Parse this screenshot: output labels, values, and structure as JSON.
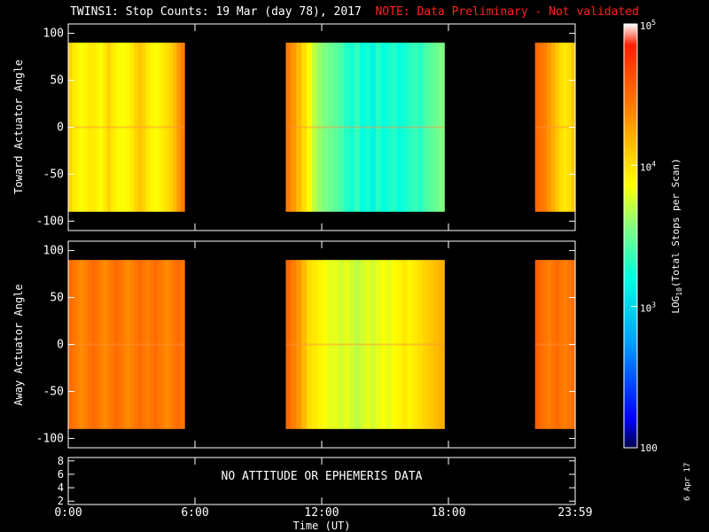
{
  "title": "TWINS1: Stop Counts: 19 Mar (day  78), 2017",
  "note": "NOTE: Data Preliminary - Not validated",
  "date_stamp": "6 Apr 17",
  "no_data_message": "NO ATTITUDE OR EPHEMERIS DATA",
  "chart_data": [
    {
      "type": "heatmap",
      "panel": "toward",
      "ylabel": "Toward Actuator Angle",
      "ylim": [
        -110,
        110
      ],
      "yticks": [
        -100,
        -50,
        0,
        50,
        100
      ],
      "x_units": "hours UT",
      "xlim": [
        0,
        24
      ],
      "angle_range": [
        -90,
        90
      ],
      "segments": [
        {
          "start": 0.0,
          "end": 5.5,
          "log_counts": [
            4.05,
            3.95,
            3.9,
            3.85,
            3.9,
            3.95,
            3.95,
            3.9,
            3.85,
            3.95,
            4.05,
            3.95,
            3.9,
            3.85,
            3.85,
            3.9,
            3.95,
            4.05,
            4.1,
            4.05,
            3.95,
            3.9,
            3.85,
            3.9,
            3.95,
            4.0,
            4.05,
            4.15,
            4.3,
            4.4
          ]
        },
        {
          "start": 10.3,
          "end": 17.8,
          "log_counts": [
            4.4,
            4.3,
            4.15,
            4.0,
            3.85,
            3.7,
            3.6,
            3.55,
            3.5,
            3.45,
            3.4,
            3.3,
            3.25,
            3.35,
            3.2,
            3.25,
            3.15,
            3.3,
            3.2,
            3.25,
            3.3,
            3.2,
            3.25,
            3.3,
            3.35,
            3.3,
            3.4,
            3.45,
            3.5,
            3.55
          ]
        },
        {
          "start": 22.1,
          "end": 24.0,
          "log_counts": [
            4.5,
            4.45,
            4.4,
            4.3,
            4.2,
            4.1,
            4.0,
            3.95,
            4.0,
            4.1
          ]
        }
      ]
    },
    {
      "type": "heatmap",
      "panel": "away",
      "ylabel": "Away Actuator Angle",
      "ylim": [
        -110,
        110
      ],
      "yticks": [
        -100,
        -50,
        0,
        50,
        100
      ],
      "x_units": "hours UT",
      "xlim": [
        0,
        24
      ],
      "angle_range": [
        -90,
        90
      ],
      "segments": [
        {
          "start": 0.0,
          "end": 5.5,
          "log_counts": [
            4.5,
            4.45,
            4.4,
            4.35,
            4.4,
            4.45,
            4.5,
            4.45,
            4.4,
            4.35,
            4.4,
            4.45,
            4.5,
            4.45,
            4.4,
            4.35,
            4.4,
            4.45,
            4.5,
            4.45,
            4.4,
            4.45,
            4.5,
            4.45,
            4.4,
            4.35,
            4.4,
            4.45,
            4.5,
            4.45
          ]
        },
        {
          "start": 10.3,
          "end": 17.8,
          "log_counts": [
            4.5,
            4.4,
            4.3,
            4.15,
            4.0,
            3.95,
            3.9,
            3.85,
            3.8,
            3.8,
            3.75,
            3.8,
            3.75,
            3.7,
            3.75,
            3.8,
            3.75,
            3.8,
            3.85,
            3.8,
            3.85,
            3.9,
            3.95,
            3.9,
            3.95,
            4.0,
            4.05,
            4.1,
            4.15,
            4.2
          ]
        },
        {
          "start": 22.1,
          "end": 24.0,
          "log_counts": [
            4.55,
            4.5,
            4.45,
            4.4,
            4.45,
            4.5,
            4.45,
            4.4,
            4.45,
            4.5
          ]
        }
      ]
    },
    {
      "type": "line",
      "panel": "ephemeris",
      "ylim": [
        1.5,
        8.5
      ],
      "yticks": [
        2,
        4,
        6,
        8
      ],
      "series": []
    }
  ],
  "x_axis": {
    "label": "Time (UT)",
    "ticks": [
      {
        "hour": 0,
        "label": "0:00"
      },
      {
        "hour": 6,
        "label": "6:00"
      },
      {
        "hour": 12,
        "label": "12:00"
      },
      {
        "hour": 18,
        "label": "18:00"
      },
      {
        "hour": 24,
        "label": "23:59"
      }
    ]
  },
  "colorbar": {
    "label_prefix": "LOG",
    "label_sub": "10",
    "label_suffix": "(Total Stops per Scan)",
    "range_log": [
      2,
      5
    ],
    "ticks": [
      {
        "value": 5,
        "base": "10",
        "exp": "5"
      },
      {
        "value": 4,
        "base": "10",
        "exp": "4"
      },
      {
        "value": 3,
        "base": "10",
        "exp": "3"
      },
      {
        "value": 2,
        "base": "100",
        "exp": ""
      }
    ]
  }
}
